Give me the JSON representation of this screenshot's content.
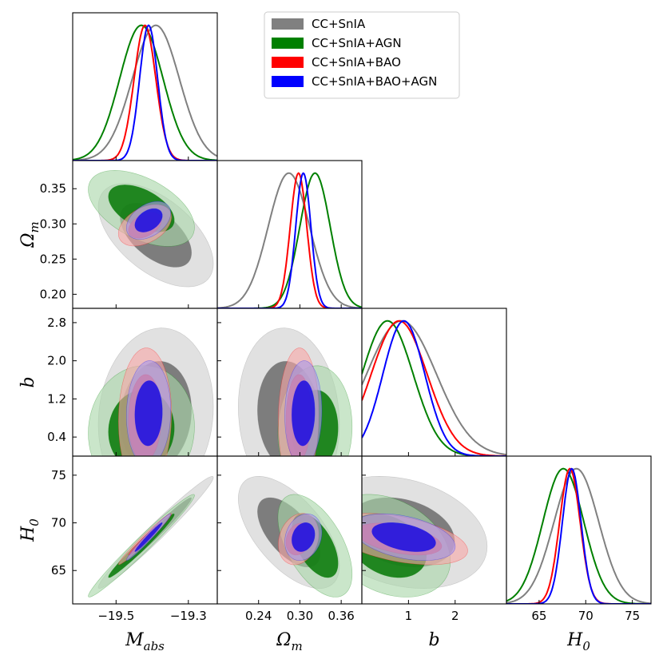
{
  "chart_data": {
    "type": "corner-triangle",
    "parameters": [
      {
        "key": "Mabs",
        "label_main": "M",
        "label_sub": "abs",
        "range": [
          -19.62,
          -19.22
        ],
        "ticks": [
          -19.5,
          -19.3
        ],
        "tick_labels": [
          "−19.5",
          "−19.3"
        ]
      },
      {
        "key": "Om",
        "label_main": "Ω",
        "label_sub": "m",
        "range": [
          0.18,
          0.39
        ],
        "ticks": [
          0.2,
          0.25,
          0.3,
          0.35
        ],
        "tick_labels": [
          "0.20",
          "0.25",
          "0.30",
          "0.35"
        ],
        "xticks": [
          0.24,
          0.3,
          0.36
        ],
        "xtick_labels": [
          "0.24",
          "0.30",
          "0.36"
        ]
      },
      {
        "key": "b",
        "label_main": "b",
        "label_sub": "",
        "range": [
          0.0,
          3.1
        ],
        "ticks": [
          0.4,
          1.2,
          2.0,
          2.8
        ],
        "tick_labels": [
          "0.4",
          "1.2",
          "2.0",
          "2.8"
        ],
        "xticks": [
          1,
          2
        ],
        "xtick_labels": [
          "1",
          "2"
        ]
      },
      {
        "key": "H0",
        "label_main": "H",
        "label_sub": "0",
        "range": [
          61.5,
          77.0
        ],
        "ticks": [
          65,
          70,
          75
        ],
        "tick_labels": [
          "65",
          "70",
          "75"
        ]
      }
    ],
    "legend": {
      "placement": "top-right",
      "entries": [
        {
          "label": "CC+SnIA",
          "color": "#808080"
        },
        {
          "label": "CC+SnIA+AGN",
          "color": "#008000"
        },
        {
          "label": "CC+SnIA+BAO",
          "color": "#ff0000"
        },
        {
          "label": "CC+SnIA+BAO+AGN",
          "color": "#0000ff"
        }
      ]
    },
    "series": [
      {
        "name": "CC+SnIA",
        "color": "#808080",
        "dark": "#6e6e6e",
        "light": "#cfcfcf",
        "mean": {
          "Mabs": -19.39,
          "Om": 0.284,
          "b": 0.85,
          "H0": 69.0
        },
        "sigma": {
          "Mabs": 0.065,
          "Om": 0.03,
          "b": 0.75,
          "H0": 2.4
        },
        "corr": {
          "Mabs-Om": -0.55,
          "Mabs-b": 0.1,
          "Mabs-H0": 0.98,
          "Om-b": -0.1,
          "Om-H0": -0.6,
          "b-H0": -0.25
        }
      },
      {
        "name": "CC+SnIA+AGN",
        "color": "#008000",
        "dark": "#0a7a0a",
        "light": "#a9d7a9",
        "mean": {
          "Mabs": -19.43,
          "Om": 0.322,
          "b": 0.55,
          "H0": 67.6
        },
        "sigma": {
          "Mabs": 0.06,
          "Om": 0.022,
          "b": 0.55,
          "H0": 2.2
        },
        "corr": {
          "Mabs-Om": -0.5,
          "Mabs-b": 0.05,
          "Mabs-H0": 0.98,
          "Om-b": 0.05,
          "Om-H0": -0.55,
          "b-H0": -0.3
        }
      },
      {
        "name": "CC+SnIA+BAO",
        "color": "#ff0000",
        "dark": "#f35c5c",
        "light": "#f7a8a8",
        "mean": {
          "Mabs": -19.42,
          "Om": 0.298,
          "b": 0.8,
          "H0": 68.3
        },
        "sigma": {
          "Mabs": 0.03,
          "Om": 0.012,
          "b": 0.6,
          "H0": 1.1
        },
        "corr": {
          "Mabs-Om": 0.4,
          "Mabs-b": 0.05,
          "Mabs-H0": 0.98,
          "Om-b": 0.05,
          "Om-H0": 0.2,
          "b-H0": -0.45
        }
      },
      {
        "name": "CC+SnIA+BAO+AGN",
        "color": "#0000ff",
        "dark": "#1d10e0",
        "light": "#a999e8",
        "mean": {
          "Mabs": -19.41,
          "Om": 0.305,
          "b": 0.9,
          "H0": 68.5
        },
        "sigma": {
          "Mabs": 0.025,
          "Om": 0.011,
          "b": 0.45,
          "H0": 1.0
        },
        "corr": {
          "Mabs-Om": 0.4,
          "Mabs-b": 0.05,
          "Mabs-H0": 0.98,
          "Om-b": 0.05,
          "Om-H0": 0.2,
          "b-H0": -0.4
        }
      }
    ]
  }
}
